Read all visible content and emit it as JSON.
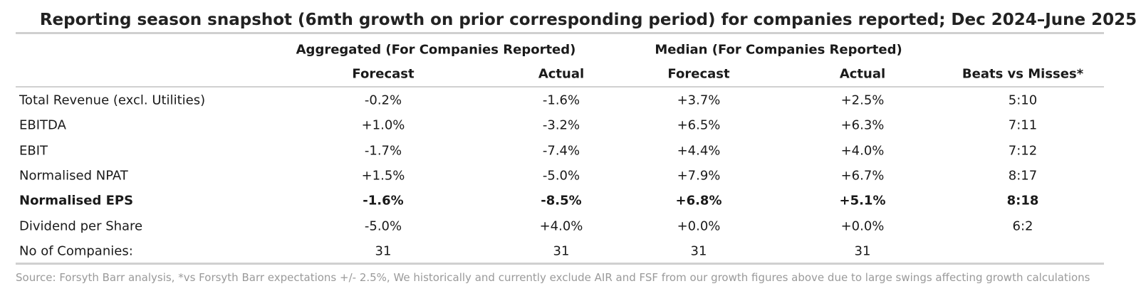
{
  "title": "Reporting season snapshot (6mth growth on prior corresponding period) for companies reported; Dec 2024–June 2025",
  "group_headers": [
    "Aggregated (For Companies Reported)",
    "Median (For Companies Reported)"
  ],
  "columns": [
    "Forecast",
    "Actual",
    "Forecast",
    "Actual",
    "Beats vs Misses*"
  ],
  "rows": [
    {
      "label": "Total Revenue (excl. Utilities)",
      "cells": [
        "-0.2%",
        "-1.6%",
        "+3.7%",
        "+2.5%",
        "5:10"
      ]
    },
    {
      "label": "EBITDA",
      "cells": [
        "+1.0%",
        "-3.2%",
        "+6.5%",
        "+6.3%",
        "7:11"
      ]
    },
    {
      "label": "EBIT",
      "cells": [
        "-1.7%",
        "-7.4%",
        "+4.4%",
        "+4.0%",
        "7:12"
      ]
    },
    {
      "label": "Normalised NPAT",
      "cells": [
        "+1.5%",
        "-5.0%",
        "+7.9%",
        "+6.7%",
        "8:17"
      ]
    },
    {
      "label": "Normalised EPS",
      "cells": [
        "-1.6%",
        "-8.5%",
        "+6.8%",
        "+5.1%",
        "8:18"
      ],
      "bold": true
    },
    {
      "label": "Dividend per Share",
      "cells": [
        "-5.0%",
        "+4.0%",
        "+0.0%",
        "+0.0%",
        "6:2"
      ]
    },
    {
      "label": "No of Companies:",
      "cells": [
        "31",
        "31",
        "31",
        "31"
      ]
    }
  ],
  "source": "Source: Forsyth Barr analysis, *vs Forsyth Barr expectations +/- 2.5%, We historically and currently exclude AIR and FSF from our growth figures above due to large swings affecting growth calculations"
}
